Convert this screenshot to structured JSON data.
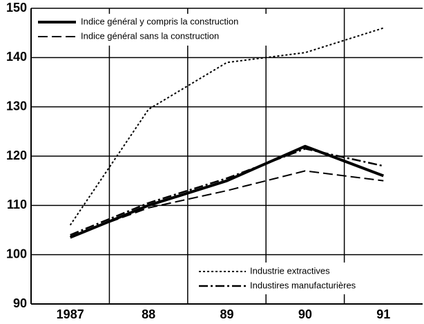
{
  "chart_data": {
    "type": "line",
    "categories": [
      "1987",
      "88",
      "89",
      "90",
      "91"
    ],
    "series": [
      {
        "name": "Indice général y compris la construction",
        "color": "#000000",
        "dash": "solid",
        "legend": "upper left",
        "values": [
          103.5,
          110,
          115,
          122,
          116
        ]
      },
      {
        "name": "Indice général sans la construction",
        "color": "#000000",
        "dash": "dashed",
        "legend": "upper left",
        "values": [
          103.7,
          109.5,
          113,
          117,
          115
        ]
      },
      {
        "name": "Industrie extractives",
        "color": "#000000",
        "dash": "dotted",
        "legend": "lower right",
        "values": [
          106,
          129.5,
          139,
          141,
          146
        ]
      },
      {
        "name": "Industires manufacturières",
        "color": "#000000",
        "dash": "dashdot",
        "legend": "lower right",
        "values": [
          104,
          110.5,
          115.5,
          121.5,
          118
        ]
      }
    ],
    "ylim": [
      90,
      150
    ],
    "yticks": [
      90,
      100,
      110,
      120,
      130,
      140,
      150
    ],
    "grid": true
  }
}
